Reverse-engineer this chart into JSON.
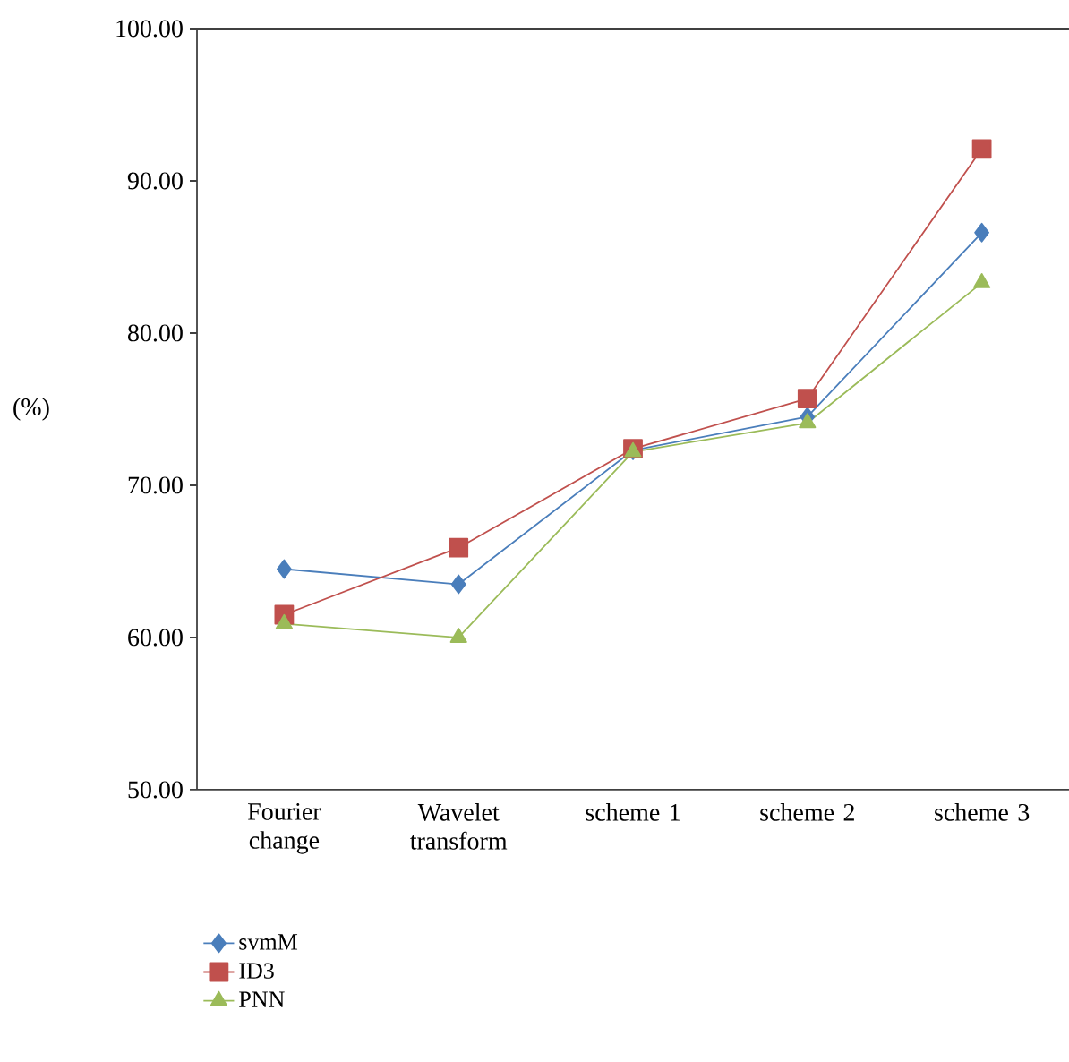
{
  "chart_data": {
    "type": "line",
    "ylabel": "(%)",
    "categories": [
      "Fourier change",
      "Wavelet transform",
      "scheme 1",
      "scheme 2",
      "scheme 3"
    ],
    "series": [
      {
        "name": "svmM",
        "color": "#4a7ebb",
        "marker": "diamond",
        "values": [
          64.5,
          63.5,
          72.3,
          74.5,
          86.6
        ]
      },
      {
        "name": "ID3",
        "color": "#c0504d",
        "marker": "square",
        "values": [
          61.5,
          65.9,
          72.4,
          75.7,
          92.1
        ]
      },
      {
        "name": "PNN",
        "color": "#9bbb59",
        "marker": "triangle",
        "values": [
          60.9,
          60.0,
          72.2,
          74.1,
          83.3
        ]
      }
    ],
    "ylim": [
      50,
      100
    ],
    "yticks": [
      {
        "value": 50,
        "label": "50.00"
      },
      {
        "value": 60,
        "label": "60.00"
      },
      {
        "value": 70,
        "label": "70.00"
      },
      {
        "value": 80,
        "label": "80.00"
      },
      {
        "value": 90,
        "label": "90.00"
      },
      {
        "value": 100,
        "label": "100.00"
      }
    ],
    "grid": false,
    "legend": "bottom left",
    "line_style": "solid"
  }
}
